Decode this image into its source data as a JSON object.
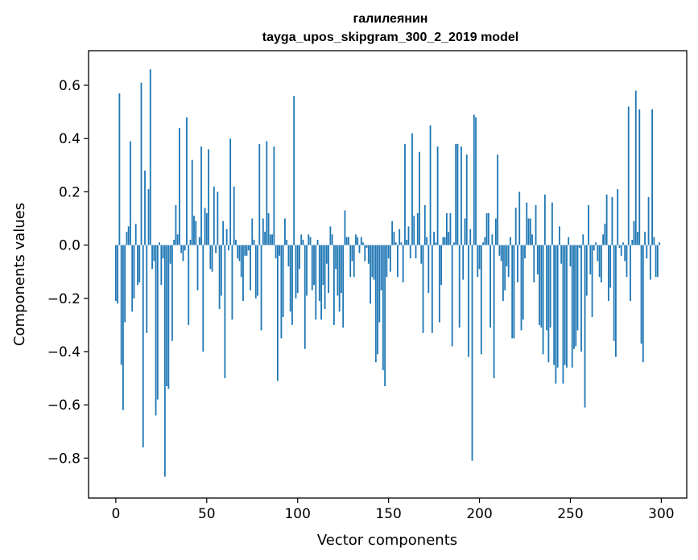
{
  "chart_data": {
    "type": "bar",
    "title_word": "галилеянин",
    "title_model": "tayga_upos_skipgram_300_2_2019 model",
    "xlabel": "Vector components",
    "ylabel": "Components values",
    "xlim": [
      -15,
      314
    ],
    "ylim": [
      -0.95,
      0.73
    ],
    "xticks": [
      0,
      50,
      100,
      150,
      200,
      250,
      300
    ],
    "yticks": [
      -0.8,
      -0.6,
      -0.4,
      -0.2,
      0.0,
      0.2,
      0.4,
      0.6
    ],
    "ytick_labels": [
      "−0.8",
      "−0.6",
      "−0.4",
      "−0.2",
      "0.0",
      "0.2",
      "0.4",
      "0.6"
    ],
    "bar_color": "#1f77b4",
    "x": [
      0,
      1,
      2,
      3,
      4,
      5,
      6,
      7,
      8,
      9,
      10,
      11,
      12,
      13,
      14,
      15,
      16,
      17,
      18,
      19,
      20,
      21,
      22,
      23,
      24,
      25,
      26,
      27,
      28,
      29,
      30,
      31,
      32,
      33,
      34,
      35,
      36,
      37,
      38,
      39,
      40,
      41,
      42,
      43,
      44,
      45,
      46,
      47,
      48,
      49,
      50,
      51,
      52,
      53,
      54,
      55,
      56,
      57,
      58,
      59,
      60,
      61,
      62,
      63,
      64,
      65,
      66,
      67,
      68,
      69,
      70,
      71,
      72,
      73,
      74,
      75,
      76,
      77,
      78,
      79,
      80,
      81,
      82,
      83,
      84,
      85,
      86,
      87,
      88,
      89,
      90,
      91,
      92,
      93,
      94,
      95,
      96,
      97,
      98,
      99,
      100,
      101,
      102,
      103,
      104,
      105,
      106,
      107,
      108,
      109,
      110,
      111,
      112,
      113,
      114,
      115,
      116,
      117,
      118,
      119,
      120,
      121,
      122,
      123,
      124,
      125,
      126,
      127,
      128,
      129,
      130,
      131,
      132,
      133,
      134,
      135,
      136,
      137,
      138,
      139,
      140,
      141,
      142,
      143,
      144,
      145,
      146,
      147,
      148,
      149,
      150,
      151,
      152,
      153,
      154,
      155,
      156,
      157,
      158,
      159,
      160,
      161,
      162,
      163,
      164,
      165,
      166,
      167,
      168,
      169,
      170,
      171,
      172,
      173,
      174,
      175,
      176,
      177,
      178,
      179,
      180,
      181,
      182,
      183,
      184,
      185,
      186,
      187,
      188,
      189,
      190,
      191,
      192,
      193,
      194,
      195,
      196,
      197,
      198,
      199,
      200,
      201,
      202,
      203,
      204,
      205,
      206,
      207,
      208,
      209,
      210,
      211,
      212,
      213,
      214,
      215,
      216,
      217,
      218,
      219,
      220,
      221,
      222,
      223,
      224,
      225,
      226,
      227,
      228,
      229,
      230,
      231,
      232,
      233,
      234,
      235,
      236,
      237,
      238,
      239,
      240,
      241,
      242,
      243,
      244,
      245,
      246,
      247,
      248,
      249,
      250,
      251,
      252,
      253,
      254,
      255,
      256,
      257,
      258,
      259,
      260,
      261,
      262,
      263,
      264,
      265,
      266,
      267,
      268,
      269,
      270,
      271,
      272,
      273,
      274,
      275,
      276,
      277,
      278,
      279,
      280,
      281,
      282,
      283,
      284,
      285,
      286,
      287,
      288,
      289,
      290,
      291,
      292,
      293,
      294,
      295,
      296,
      297,
      298,
      299
    ],
    "values": [
      -0.21,
      -0.22,
      0.57,
      -0.45,
      -0.62,
      -0.29,
      0.05,
      0.07,
      0.39,
      -0.25,
      -0.2,
      0.08,
      -0.15,
      -0.14,
      0.61,
      -0.76,
      0.28,
      -0.33,
      0.21,
      0.66,
      -0.09,
      -0.06,
      -0.64,
      -0.58,
      0.01,
      -0.15,
      -0.05,
      -0.87,
      -0.53,
      -0.54,
      -0.07,
      -0.36,
      0.02,
      0.15,
      0.04,
      0.44,
      -0.03,
      -0.06,
      -0.02,
      0.48,
      -0.3,
      0.02,
      0.32,
      0.11,
      0.09,
      -0.17,
      0.03,
      0.37,
      -0.4,
      0.14,
      0.12,
      0.36,
      -0.09,
      -0.1,
      0.22,
      -0.03,
      0.2,
      -0.24,
      -0.19,
      0.09,
      -0.5,
      0.06,
      -0.02,
      0.4,
      -0.28,
      0.22,
      0.02,
      -0.05,
      -0.06,
      -0.12,
      -0.21,
      -0.04,
      -0.04,
      -0.02,
      -0.17,
      0.1,
      0.02,
      -0.2,
      -0.19,
      0.38,
      -0.32,
      0.1,
      0.05,
      0.39,
      0.12,
      0.04,
      0.04,
      0.37,
      -0.05,
      -0.51,
      -0.04,
      -0.35,
      -0.27,
      0.1,
      0.02,
      -0.08,
      -0.25,
      -0.3,
      0.56,
      -0.2,
      -0.18,
      -0.09,
      0.04,
      0.02,
      -0.39,
      -0.19,
      0.04,
      0.03,
      -0.17,
      -0.15,
      -0.28,
      0.02,
      -0.21,
      -0.28,
      -0.15,
      -0.24,
      -0.07,
      -0.18,
      0.07,
      0.04,
      -0.3,
      -0.09,
      -0.19,
      -0.25,
      -0.18,
      -0.31,
      0.13,
      0.03,
      0.03,
      -0.12,
      -0.06,
      -0.12,
      0.04,
      0.03,
      -0.03,
      0.03,
      0.01,
      -0.06,
      -0.01,
      -0.07,
      -0.22,
      -0.12,
      -0.13,
      -0.44,
      -0.41,
      -0.29,
      -0.17,
      -0.47,
      -0.53,
      -0.12,
      -0.05,
      -0.1,
      0.09,
      0.05,
      0.01,
      -0.12,
      0.06,
      0.01,
      -0.14,
      0.38,
      0.02,
      0.07,
      -0.05,
      0.42,
      0.11,
      -0.05,
      0.12,
      0.35,
      -0.07,
      -0.33,
      0.15,
      0.03,
      -0.18,
      0.45,
      -0.33,
      0.05,
      0.01,
      0.37,
      -0.29,
      -0.15,
      0.03,
      0.03,
      0.12,
      0.05,
      0.12,
      -0.38,
      0.01,
      0.38,
      0.38,
      -0.31,
      0.37,
      -0.13,
      0.1,
      0.34,
      -0.42,
      0.06,
      -0.81,
      0.49,
      0.48,
      -0.12,
      -0.09,
      -0.41,
      0.01,
      0.03,
      0.12,
      0.12,
      -0.31,
      0.04,
      -0.5,
      0.1,
      0.34,
      -0.04,
      -0.06,
      -0.21,
      -0.17,
      -0.08,
      -0.12,
      0.03,
      -0.35,
      -0.35,
      0.14,
      -0.14,
      0.2,
      -0.32,
      -0.28,
      -0.05,
      0.16,
      0.1,
      0.1,
      0.04,
      -0.14,
      0.15,
      -0.11,
      -0.3,
      -0.31,
      -0.41,
      0.19,
      -0.32,
      -0.44,
      -0.31,
      0.16,
      -0.45,
      -0.52,
      -0.46,
      0.07,
      -0.07,
      -0.52,
      -0.45,
      -0.46,
      0.03,
      -0.08,
      -0.46,
      -0.39,
      -0.38,
      -0.32,
      -0.01,
      -0.4,
      0.04,
      -0.61,
      -0.19,
      0.15,
      -0.11,
      -0.27,
      -0.02,
      0.01,
      -0.06,
      -0.12,
      -0.14,
      0.04,
      0.08,
      0.19,
      -0.21,
      -0.16,
      0.18,
      -0.36,
      -0.42,
      0.21,
      -0.01,
      -0.04,
      0.01,
      -0.06,
      -0.12,
      0.52,
      -0.21,
      0.02,
      0.09,
      0.58,
      0.05,
      0.51,
      -0.37,
      -0.44,
      0.05,
      -0.05,
      0.18,
      -0.13,
      0.51,
      0.03,
      -0.12,
      -0.12,
      0.01
    ]
  }
}
